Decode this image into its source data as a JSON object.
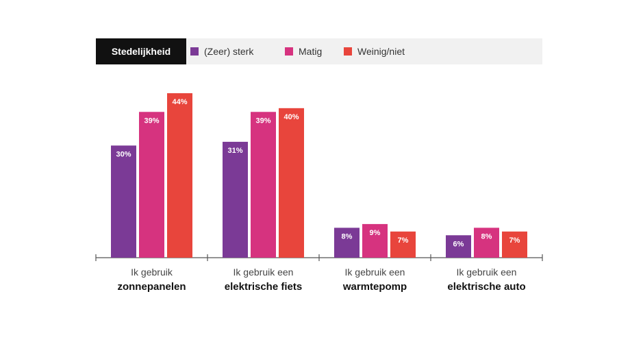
{
  "legend": {
    "title": "Stedelijkheid",
    "items": [
      {
        "label": "(Zeer) sterk",
        "color": "#7b3a96"
      },
      {
        "label": "Matig",
        "color": "#d6337f"
      },
      {
        "label": "Weinig/niet",
        "color": "#e8453c"
      }
    ]
  },
  "chart_data": {
    "type": "bar",
    "categories": [
      {
        "line1": "Ik gebruik",
        "line2": "zonnepanelen"
      },
      {
        "line1": "Ik gebruik een",
        "line2": "elektrische fiets"
      },
      {
        "line1": "Ik gebruik een",
        "line2": "warmtepomp"
      },
      {
        "line1": "Ik gebruik een",
        "line2": "elektrische auto"
      }
    ],
    "series": [
      {
        "name": "(Zeer) sterk",
        "color": "#7b3a96",
        "values": [
          30,
          31,
          8,
          6
        ],
        "labels": [
          "30%",
          "31%",
          "8%",
          "6%"
        ]
      },
      {
        "name": "Matig",
        "color": "#d6337f",
        "values": [
          39,
          39,
          9,
          8
        ],
        "labels": [
          "39%",
          "39%",
          "9%",
          "8%"
        ]
      },
      {
        "name": "Weinig/niet",
        "color": "#e8453c",
        "values": [
          44,
          40,
          7,
          7
        ],
        "labels": [
          "44%",
          "40%",
          "7%",
          "7%"
        ]
      }
    ],
    "ylim": [
      0,
      44
    ],
    "grid": false,
    "legend_position": "top"
  }
}
